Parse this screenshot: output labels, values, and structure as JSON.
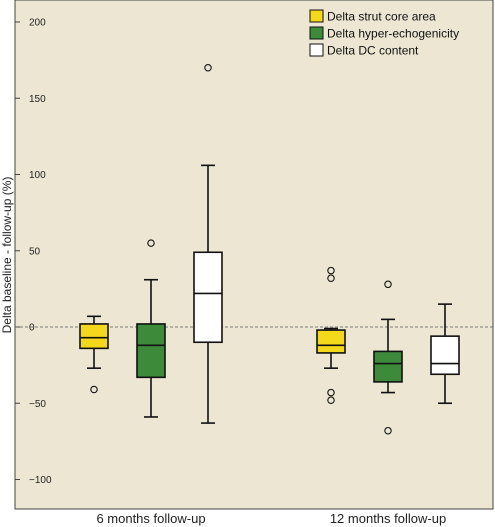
{
  "chart_data": {
    "type": "box",
    "ylabel": "Delta baseline - follow-up (%)",
    "xlabel": "",
    "ylim": [
      -110,
      220
    ],
    "yticks": [
      -100,
      -50,
      0,
      50,
      100,
      150,
      200
    ],
    "ytick_labels": [
      "−100",
      "−50",
      "0",
      "50",
      "100",
      "150",
      "200"
    ],
    "reference_line": 0,
    "grid": false,
    "legend_position": "top-right",
    "plot_background": "#ece6d2",
    "categories": [
      "6 months follow-up",
      "12 months follow-up"
    ],
    "series": [
      {
        "name": "Delta strut core area",
        "color": "#f4d81c",
        "boxes": [
          {
            "whisker_low": -27,
            "q1": -14,
            "median": -7,
            "q3": 2,
            "whisker_high": 7,
            "outliers": [
              -41
            ]
          },
          {
            "whisker_low": -27,
            "q1": -17,
            "median": -12,
            "q3": -2,
            "whisker_high": -1,
            "outliers": [
              37,
              32,
              -43,
              -48
            ]
          }
        ]
      },
      {
        "name": "Delta hyper-echogenicity",
        "color": "#3d8b3a",
        "boxes": [
          {
            "whisker_low": -59,
            "q1": -33,
            "median": -12,
            "q3": 2,
            "whisker_high": 31,
            "outliers": [
              55
            ]
          },
          {
            "whisker_low": -43,
            "q1": -36,
            "median": -24,
            "q3": -16,
            "whisker_high": 5,
            "outliers": [
              28,
              -68
            ]
          }
        ]
      },
      {
        "name": "Delta DC content",
        "color": "#ffffff",
        "boxes": [
          {
            "whisker_low": -63,
            "q1": -10,
            "median": 22,
            "q3": 49,
            "whisker_high": 106,
            "outliers": [
              170
            ]
          },
          {
            "whisker_low": -50,
            "q1": -31,
            "median": -24,
            "q3": -6,
            "whisker_high": 15,
            "outliers": []
          }
        ]
      }
    ]
  }
}
